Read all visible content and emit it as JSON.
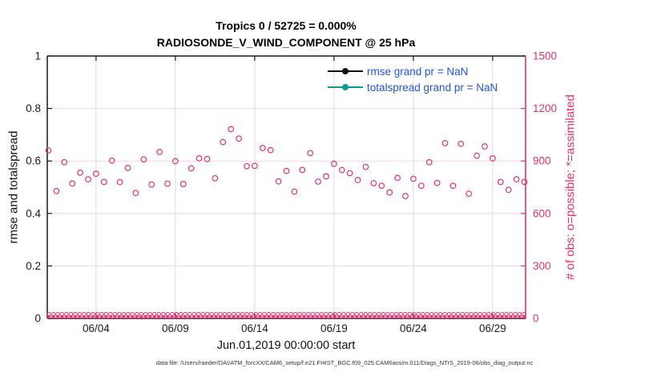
{
  "figure": {
    "title_line1": "Tropics 0 / 52725 = 0.000%",
    "title_line2": "RADIOSONDE_V_WIND_COMPONENT @ 25 hPa",
    "xlabel": "Jun.01,2019 00:00:00 start",
    "footer": "data file: /Users/raeder/DAI/ATM_forcXX/CAM6_setup/f.e21.FHIST_BGC.f09_025.CAM6assim.011/Diags_NTrS_2019-06/obs_diag_output.nc",
    "legend": [
      {
        "label": "rmse grand pr = NaN",
        "line_color": "#111111"
      },
      {
        "label": "totalspread grand pr = NaN",
        "line_color": "#0b9898"
      }
    ],
    "legend_text_color": "#2353e8"
  },
  "colors": {
    "accent_pink": "#e8306e",
    "axis_dark": "#1a1a1a",
    "grid_horizontal": "#f7d2e1",
    "grid_vertical": "#dcdcdc",
    "legend_blue": "#2353e8",
    "teal": "#0b9898",
    "black_series": "#111111"
  },
  "chart_data": {
    "type": "scatter",
    "title": "Tropics 0 / 52725 = 0.000%",
    "subtitle": "RADIOSONDE_V_WIND_COMPONENT @ 25 hPa",
    "xlabel": "Jun.01,2019 00:00:00 start",
    "left_axis": {
      "label": "rmse and totalspread",
      "ticks": [
        0,
        0.2,
        0.4,
        0.6,
        0.8,
        1
      ],
      "tick_labels": [
        "0",
        "0.2",
        "0.4",
        "0.6",
        "0.8",
        "1"
      ],
      "range": [
        0,
        1
      ]
    },
    "right_axis": {
      "label": "# of obs: o=possible; *=assimilated",
      "ticks": [
        0,
        300,
        600,
        900,
        1200,
        1500
      ],
      "tick_labels": [
        "0",
        "300",
        "600",
        "900",
        "1200",
        "1500"
      ],
      "range": [
        0,
        1500
      ]
    },
    "x_axis": {
      "tick_labels": [
        "06/04",
        "06/09",
        "06/14",
        "06/19",
        "06/24",
        "06/29"
      ],
      "tick_days": [
        3,
        8,
        13,
        18,
        23,
        28
      ],
      "range_days": [
        -0.1,
        30.1
      ]
    },
    "grid": true,
    "legend_position": "upper-center-right",
    "rmse_grand_pr": "NaN",
    "totalspread_grand_pr": "NaN",
    "series": [
      {
        "name": "possible-obs-count",
        "marker": "circle",
        "axis": "right",
        "color": "#e8306e",
        "start_day": 0,
        "interval_hours": 12,
        "values": [
          960,
          728,
          893,
          771,
          833,
          795,
          827,
          780,
          902,
          779,
          860,
          717,
          909,
          765,
          951,
          770,
          899,
          768,
          858,
          915,
          911,
          801,
          1008,
          1082,
          1028,
          870,
          872,
          974,
          962,
          783,
          843,
          725,
          849,
          945,
          782,
          812,
          884,
          848,
          830,
          791,
          866,
          773,
          758,
          720,
          803,
          699,
          798,
          758,
          893,
          774,
          1002,
          758,
          998,
          713,
          930,
          983,
          915,
          780,
          735,
          795,
          780
        ]
      },
      {
        "name": "assimilated-obs-count",
        "marker": "asterisk",
        "axis": "right",
        "color": "#e8306e",
        "constant_value": 0,
        "note": "dense row of asterisks along zero line; 0 obs assimilated"
      },
      {
        "name": "zero-line-circle-row",
        "marker": "circle",
        "axis": "right",
        "color": "#e8306e",
        "constant_value": 25,
        "note": "dense row of small circles just above zero line"
      }
    ]
  }
}
